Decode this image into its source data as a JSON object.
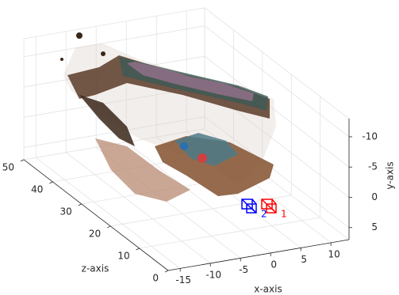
{
  "chart_data": {
    "type": "scatter3d",
    "xlabel": "x-axis",
    "ylabel": "y-axis",
    "zlabel": "z-axis",
    "xlim": [
      -17,
      13
    ],
    "ylim": [
      -13,
      7
    ],
    "zlim": [
      0,
      50
    ],
    "xticks": [
      -15,
      -10,
      -5,
      0,
      5,
      10
    ],
    "yticks": [
      -10,
      -5,
      0,
      5
    ],
    "zticks": [
      0,
      10,
      20,
      30,
      40,
      50
    ],
    "ydir": "reverse",
    "grid": true,
    "annotations": [
      {
        "text": "1",
        "color": "#ff0000"
      },
      {
        "text": "2",
        "color": "#0000ff"
      }
    ]
  }
}
